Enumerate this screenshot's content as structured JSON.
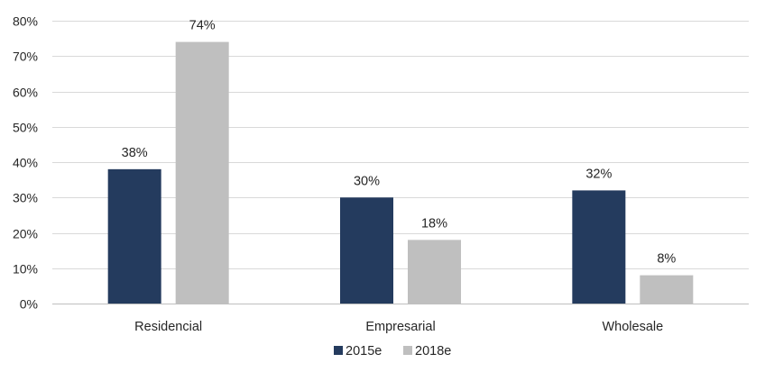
{
  "chart_data": {
    "type": "bar",
    "categories": [
      "Residencial",
      "Empresarial",
      "Wholesale"
    ],
    "series": [
      {
        "name": "2015e",
        "values": [
          38,
          30,
          32
        ],
        "color": "#243b5e"
      },
      {
        "name": "2018e",
        "values": [
          74,
          18,
          8
        ],
        "color": "#bfbfbf"
      }
    ],
    "value_suffix": "%",
    "ylim": [
      0,
      80
    ],
    "yticks": [
      "0%",
      "10%",
      "20%",
      "30%",
      "40%",
      "50%",
      "60%",
      "70%",
      "80%"
    ],
    "ytick_values": [
      0,
      10,
      20,
      30,
      40,
      50,
      60,
      70,
      80
    ],
    "data_labels": [
      [
        "38%",
        "30%",
        "32%"
      ],
      [
        "74%",
        "18%",
        "8%"
      ]
    ],
    "grid": true,
    "legend_position": "bottom",
    "title": "",
    "xlabel": "",
    "ylabel": ""
  }
}
